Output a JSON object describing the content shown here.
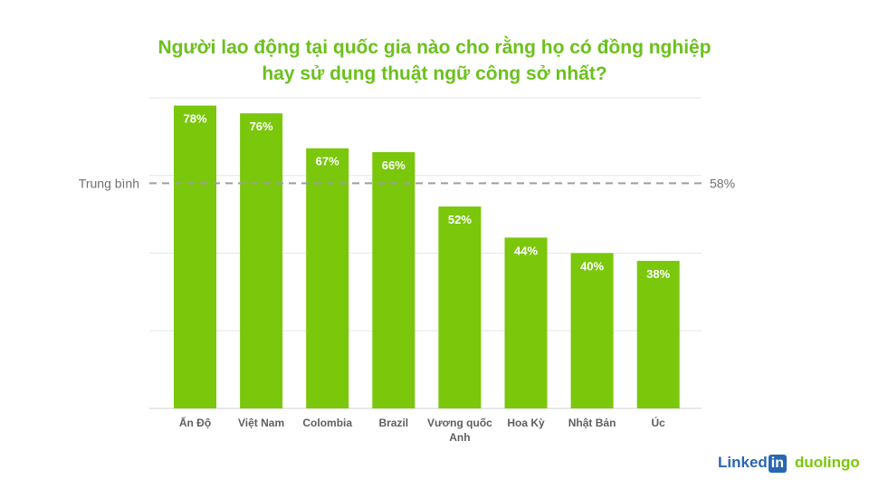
{
  "title_lines": [
    "Người lao động tại quốc gia nào cho rằng họ có đồng nghiệp",
    "hay sử dụng thuật ngữ công sở nhất?"
  ],
  "colors": {
    "bar": "#7ac70c",
    "title": "#6cc01e",
    "average_line": "#9e9e9e",
    "grid": "#e6e6e6",
    "axis_text": "#5f5f5f"
  },
  "chart_data": {
    "type": "bar",
    "title": "Người lao động tại quốc gia nào cho rằng họ có đồng nghiệp hay sử dụng thuật ngữ công sở nhất?",
    "categories": [
      "Ấn Độ",
      "Việt Nam",
      "Colombia",
      "Brazil",
      "Vương quốc Anh",
      "Hoa Kỳ",
      "Nhật Bản",
      "Úc"
    ],
    "values": [
      78,
      76,
      67,
      66,
      52,
      44,
      40,
      38
    ],
    "value_labels": [
      "78%",
      "76%",
      "67%",
      "66%",
      "52%",
      "44%",
      "40%",
      "38%"
    ],
    "unit": "%",
    "ylim": [
      0,
      80
    ],
    "gridlines": [
      20,
      40,
      60,
      80
    ],
    "grid": true,
    "average": {
      "label": "Trung bình",
      "value": 58,
      "value_label": "58%"
    },
    "xlabel": "",
    "ylabel": ""
  },
  "logos": {
    "linkedin_text": "Linked",
    "linkedin_box": "in",
    "duolingo": "duolingo"
  }
}
